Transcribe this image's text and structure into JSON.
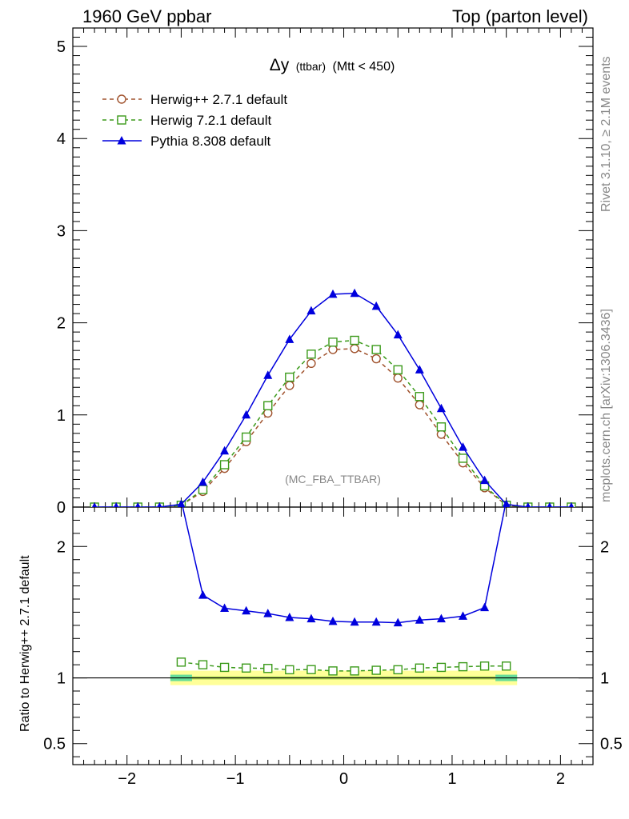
{
  "header": {
    "left": "1960 GeV ppbar",
    "right": "Top (parton level)"
  },
  "side_text": {
    "rivet": "Rivet 3.1.10, ≥ 2.1M events",
    "mcplots": "mcplots.cern.ch [arXiv:1306.3436]"
  },
  "plot_title": {
    "symbol": "Δy",
    "small": "(ttbar)",
    "rest": "(Mtt < 450)"
  },
  "watermark": "(MC_FBA_TTBAR)",
  "ratio_ylabel": "Ratio to Herwig++ 2.7.1 default",
  "colors": {
    "herwigpp": "#a0522d",
    "herwig7": "#3b9a1a",
    "pythia": "#0000dd",
    "band_outer": "#ffff99",
    "band_inner": "#66dd99"
  },
  "chart_data": [
    {
      "type": "line",
      "panel": "main",
      "xlim": [
        -2.5,
        2.3
      ],
      "ylim": [
        0,
        5.2
      ],
      "yticks": [
        "0",
        "1",
        "2",
        "3",
        "4",
        "5"
      ],
      "legend_position": "top-left",
      "series": [
        {
          "name": "Herwig++ 2.7.1 default",
          "marker": "open-circle",
          "style": "dashed",
          "x": [
            -2.3,
            -2.1,
            -1.9,
            -1.7,
            -1.5,
            -1.3,
            -1.1,
            -0.9,
            -0.7,
            -0.5,
            -0.3,
            -0.1,
            0.1,
            0.3,
            0.5,
            0.7,
            0.9,
            1.1,
            1.3,
            1.5,
            1.7,
            1.9,
            2.1
          ],
          "y": [
            0,
            0,
            0,
            0,
            0.02,
            0.17,
            0.42,
            0.71,
            1.02,
            1.32,
            1.56,
            1.71,
            1.72,
            1.61,
            1.4,
            1.11,
            0.79,
            0.48,
            0.21,
            0.02,
            0,
            0,
            0
          ]
        },
        {
          "name": "Herwig 7.2.1 default",
          "marker": "open-square",
          "style": "dashed",
          "x": [
            -2.3,
            -2.1,
            -1.9,
            -1.7,
            -1.5,
            -1.3,
            -1.1,
            -0.9,
            -0.7,
            -0.5,
            -0.3,
            -0.1,
            0.1,
            0.3,
            0.5,
            0.7,
            0.9,
            1.1,
            1.3,
            1.5,
            1.7,
            1.9,
            2.1
          ],
          "y": [
            0,
            0,
            0,
            0,
            0.02,
            0.19,
            0.46,
            0.76,
            1.1,
            1.41,
            1.66,
            1.79,
            1.81,
            1.71,
            1.49,
            1.2,
            0.87,
            0.53,
            0.23,
            0.02,
            0,
            0,
            0
          ]
        },
        {
          "name": "Pythia 8.308 default",
          "marker": "filled-triangle",
          "style": "solid",
          "x": [
            -2.3,
            -2.1,
            -1.9,
            -1.7,
            -1.5,
            -1.3,
            -1.1,
            -0.9,
            -0.7,
            -0.5,
            -0.3,
            -0.1,
            0.1,
            0.3,
            0.5,
            0.7,
            0.9,
            1.1,
            1.3,
            1.5,
            1.7,
            1.9,
            2.1
          ],
          "y": [
            0,
            0,
            0,
            0,
            0.03,
            0.27,
            0.61,
            1.0,
            1.43,
            1.82,
            2.13,
            2.31,
            2.32,
            2.18,
            1.87,
            1.49,
            1.07,
            0.65,
            0.29,
            0.03,
            0,
            0,
            0
          ]
        }
      ]
    },
    {
      "type": "line",
      "panel": "ratio",
      "xlim": [
        -2.5,
        2.3
      ],
      "ylim": [
        0.34,
        2.3
      ],
      "yticks": [
        "0.5",
        "1",
        "2"
      ],
      "xticks": [
        "−2",
        "−1",
        "0",
        "1",
        "2"
      ],
      "band": {
        "x": [
          -1.6,
          1.6
        ],
        "y": [
          1.0,
          1.0
        ]
      },
      "series": [
        {
          "name": "Herwig 7.2.1 default",
          "marker": "open-square",
          "style": "dashed",
          "x": [
            -1.5,
            -1.3,
            -1.1,
            -0.9,
            -0.7,
            -0.5,
            -0.3,
            -0.1,
            0.1,
            0.3,
            0.5,
            0.7,
            0.9,
            1.1,
            1.3,
            1.5
          ],
          "y": [
            1.12,
            1.1,
            1.08,
            1.075,
            1.072,
            1.062,
            1.063,
            1.053,
            1.053,
            1.058,
            1.062,
            1.075,
            1.08,
            1.085,
            1.09,
            1.09
          ]
        },
        {
          "name": "Pythia 8.308 default",
          "marker": "filled-triangle",
          "style": "solid",
          "x": [
            -1.5,
            -1.3,
            -1.1,
            -0.9,
            -0.7,
            -0.5,
            -0.3,
            -0.1,
            0.1,
            0.3,
            0.5,
            0.7,
            0.9,
            1.1,
            1.3,
            1.5
          ],
          "y": [
            2.35,
            1.63,
            1.53,
            1.51,
            1.49,
            1.46,
            1.45,
            1.43,
            1.425,
            1.425,
            1.42,
            1.44,
            1.45,
            1.47,
            1.535,
            2.35
          ]
        }
      ]
    }
  ]
}
